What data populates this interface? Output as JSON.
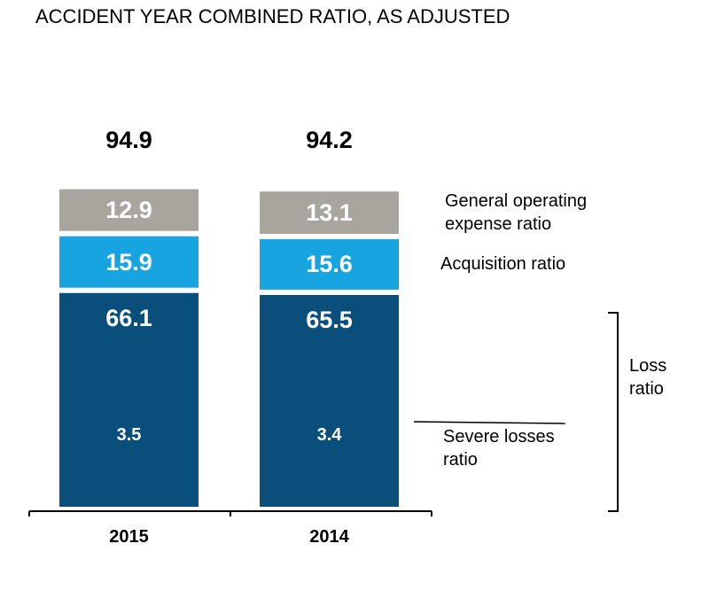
{
  "chart_data": {
    "type": "stacked_bar",
    "title": "ACCIDENT YEAR COMBINED RATIO, AS ADJUSTED",
    "categories": [
      "2015",
      "2014"
    ],
    "series": [
      {
        "name": "Loss ratio",
        "color": "#0a4f7c",
        "values": [
          66.1,
          65.5
        ]
      },
      {
        "name": "Acquisition ratio",
        "color": "#18a4e0",
        "values": [
          15.9,
          15.6
        ]
      },
      {
        "name": "General operating expense ratio",
        "color": "#a8a49e",
        "values": [
          12.9,
          13.1
        ]
      }
    ],
    "totals": [
      94.9,
      94.2
    ],
    "severe_losses": {
      "name": "Severe losses ratio",
      "values": [
        3.5,
        3.4
      ]
    }
  }
}
